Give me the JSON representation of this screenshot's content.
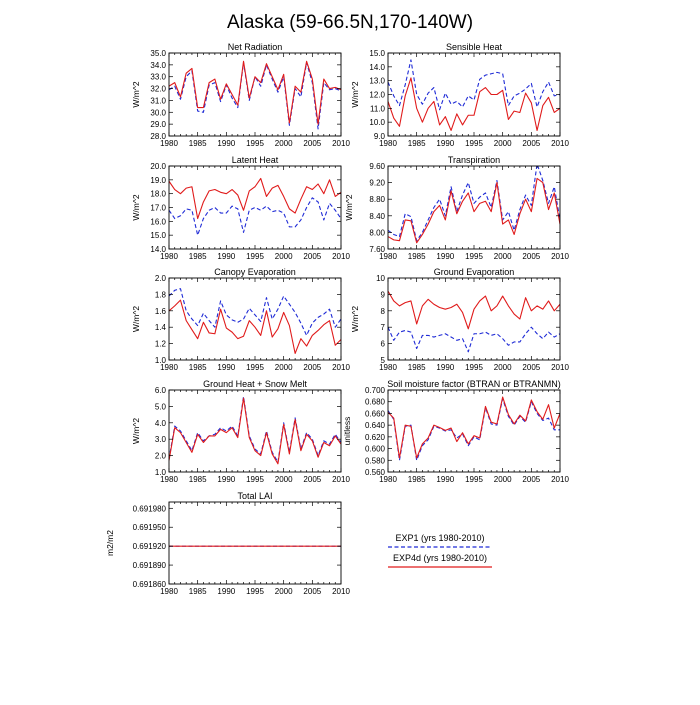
{
  "title": "Alaska (59-66.5N,170-140W)",
  "colors": {
    "exp1": "#1f2bd6",
    "exp4d": "#e01b1b"
  },
  "legend": {
    "entries": [
      {
        "label": "EXP1 (yrs 1980-2010)",
        "color": "#1f2bd6",
        "style": "dashed"
      },
      {
        "label": "EXP4d (yrs 1980-2010)",
        "color": "#e01b1b",
        "style": "solid"
      }
    ]
  },
  "chart_data": [
    {
      "type": "line",
      "title": "Net Radiation",
      "ylabel": "W/m^2",
      "xlim": [
        1980,
        2010
      ],
      "ylim": [
        28.0,
        35.0
      ],
      "xticks": [
        "1980",
        "1985",
        "1990",
        "1995",
        "2000",
        "2005",
        "2010"
      ],
      "yticks": [
        "28.0",
        "29.0",
        "30.0",
        "31.0",
        "32.0",
        "33.0",
        "34.0",
        "35.0"
      ],
      "x_start": 1980,
      "series": [
        {
          "values": [
            31.9,
            32.2,
            31.1,
            33.0,
            33.5,
            30.1,
            30.0,
            32.3,
            32.5,
            30.9,
            32.3,
            31.2,
            30.4,
            34.2,
            31.0,
            33.0,
            32.2,
            34.0,
            32.8,
            31.7,
            33.0,
            28.9,
            32.0,
            31.3,
            34.2,
            32.5,
            28.6,
            32.5,
            31.9,
            32.0,
            31.8
          ]
        },
        {
          "values": [
            32.2,
            32.5,
            31.3,
            33.3,
            33.7,
            30.4,
            30.4,
            32.5,
            32.8,
            31.1,
            32.4,
            31.5,
            30.6,
            34.3,
            31.2,
            33.0,
            32.5,
            34.1,
            33.0,
            31.9,
            33.2,
            29.1,
            32.2,
            31.7,
            34.3,
            32.8,
            29.0,
            32.8,
            32.0,
            32.1,
            31.9
          ]
        }
      ]
    },
    {
      "type": "line",
      "title": "Sensible Heat",
      "ylabel": "W/m^2",
      "xlim": [
        1980,
        2010
      ],
      "ylim": [
        9.0,
        15.0
      ],
      "xticks": [
        "1980",
        "1985",
        "1990",
        "1995",
        "2000",
        "2005",
        "2010"
      ],
      "yticks": [
        "9.0",
        "10.0",
        "11.0",
        "12.0",
        "13.0",
        "14.0",
        "15.0"
      ],
      "x_start": 1980,
      "series": [
        {
          "values": [
            12.9,
            11.9,
            11.2,
            12.7,
            14.5,
            12.0,
            11.3,
            12.1,
            12.5,
            10.9,
            12.1,
            11.3,
            11.5,
            11.1,
            11.9,
            11.6,
            13.1,
            13.4,
            13.5,
            13.6,
            13.5,
            11.2,
            11.9,
            12.1,
            12.4,
            12.8,
            11.1,
            12.2,
            12.9,
            11.9,
            12.0
          ]
        },
        {
          "values": [
            11.5,
            10.3,
            9.7,
            11.9,
            13.2,
            11.0,
            10.0,
            11.0,
            11.5,
            9.8,
            10.4,
            9.4,
            10.6,
            9.8,
            10.5,
            10.5,
            12.2,
            12.5,
            12.0,
            12.0,
            12.3,
            10.2,
            10.8,
            10.7,
            12.1,
            11.4,
            9.4,
            11.2,
            11.8,
            10.7,
            11.0
          ]
        }
      ]
    },
    {
      "type": "line",
      "title": "Latent Heat",
      "ylabel": "W/m^2",
      "xlim": [
        1980,
        2010
      ],
      "ylim": [
        14.0,
        20.0
      ],
      "xticks": [
        "1980",
        "1985",
        "1990",
        "1995",
        "2000",
        "2005",
        "2010"
      ],
      "yticks": [
        "14.0",
        "15.0",
        "16.0",
        "17.0",
        "18.0",
        "19.0",
        "20.0"
      ],
      "x_start": 1980,
      "series": [
        {
          "values": [
            16.8,
            16.2,
            16.4,
            16.9,
            16.8,
            15.0,
            16.2,
            16.8,
            17.0,
            16.6,
            16.6,
            17.1,
            16.9,
            15.2,
            16.8,
            17.0,
            16.8,
            17.1,
            16.7,
            16.8,
            16.6,
            15.6,
            15.6,
            16.1,
            17.0,
            17.7,
            17.4,
            16.1,
            17.3,
            16.8,
            16.2
          ]
        },
        {
          "values": [
            18.9,
            18.3,
            18.0,
            18.4,
            18.5,
            16.2,
            17.4,
            18.2,
            18.3,
            18.1,
            18.0,
            18.3,
            17.9,
            16.8,
            18.2,
            18.5,
            19.1,
            17.8,
            18.4,
            18.6,
            17.8,
            16.9,
            16.6,
            17.6,
            18.5,
            18.3,
            18.7,
            18.0,
            19.0,
            17.8,
            18.1
          ]
        }
      ]
    },
    {
      "type": "line",
      "title": "Transpiration",
      "ylabel": "W/m^2",
      "xlim": [
        1980,
        2010
      ],
      "ylim": [
        7.6,
        9.6
      ],
      "xticks": [
        "1980",
        "1985",
        "1990",
        "1995",
        "2000",
        "2005",
        "2010"
      ],
      "yticks": [
        "7.60",
        "8.00",
        "8.40",
        "8.80",
        "9.20",
        "9.60"
      ],
      "x_start": 1980,
      "series": [
        {
          "values": [
            8.05,
            7.95,
            7.9,
            8.45,
            8.38,
            7.8,
            8.0,
            8.3,
            8.6,
            8.8,
            8.4,
            9.1,
            8.5,
            8.9,
            9.2,
            8.7,
            8.85,
            8.95,
            8.6,
            9.25,
            8.3,
            8.5,
            8.05,
            8.55,
            8.9,
            8.65,
            9.65,
            9.25,
            8.7,
            9.1,
            8.3
          ]
        },
        {
          "values": [
            7.9,
            7.82,
            7.8,
            8.3,
            8.28,
            7.75,
            7.95,
            8.2,
            8.5,
            8.65,
            8.3,
            9.0,
            8.45,
            8.75,
            8.95,
            8.5,
            8.7,
            8.75,
            8.5,
            9.2,
            8.2,
            8.3,
            7.95,
            8.45,
            8.8,
            8.5,
            9.3,
            9.2,
            8.55,
            8.95,
            8.2
          ]
        }
      ]
    },
    {
      "type": "line",
      "title": "Canopy Evaporation",
      "ylabel": "W/m^2",
      "xlim": [
        1980,
        2010
      ],
      "ylim": [
        1.0,
        2.0
      ],
      "xticks": [
        "1980",
        "1985",
        "1990",
        "1995",
        "2000",
        "2005",
        "2010"
      ],
      "yticks": [
        "1.0",
        "1.2",
        "1.4",
        "1.6",
        "1.8",
        "2.0"
      ],
      "x_start": 1980,
      "series": [
        {
          "values": [
            1.78,
            1.85,
            1.87,
            1.6,
            1.5,
            1.42,
            1.57,
            1.48,
            1.4,
            1.72,
            1.55,
            1.49,
            1.46,
            1.5,
            1.63,
            1.55,
            1.47,
            1.76,
            1.5,
            1.62,
            1.78,
            1.68,
            1.58,
            1.45,
            1.3,
            1.45,
            1.52,
            1.56,
            1.62,
            1.4,
            1.5
          ]
        },
        {
          "values": [
            1.6,
            1.66,
            1.73,
            1.48,
            1.37,
            1.26,
            1.46,
            1.33,
            1.32,
            1.62,
            1.39,
            1.34,
            1.26,
            1.29,
            1.48,
            1.4,
            1.3,
            1.6,
            1.28,
            1.38,
            1.58,
            1.42,
            1.08,
            1.26,
            1.17,
            1.3,
            1.36,
            1.43,
            1.48,
            1.18,
            1.25
          ]
        }
      ]
    },
    {
      "type": "line",
      "title": "Ground Evaporation",
      "ylabel": "W/m^2",
      "xlim": [
        1980,
        2010
      ],
      "ylim": [
        5,
        10
      ],
      "xticks": [
        "1980",
        "1985",
        "1990",
        "1995",
        "2000",
        "2005",
        "2010"
      ],
      "yticks": [
        "5",
        "6",
        "7",
        "8",
        "9",
        "10"
      ],
      "x_start": 1980,
      "series": [
        {
          "values": [
            7.0,
            6.2,
            6.7,
            6.8,
            6.7,
            5.7,
            6.5,
            6.5,
            6.4,
            6.5,
            6.6,
            6.4,
            6.2,
            6.3,
            5.5,
            6.6,
            6.6,
            6.7,
            6.5,
            6.6,
            6.3,
            5.9,
            6.1,
            6.1,
            6.6,
            7.0,
            6.6,
            6.3,
            6.7,
            6.4,
            6.6
          ]
        },
        {
          "values": [
            9.2,
            8.6,
            8.3,
            8.5,
            8.6,
            7.2,
            8.3,
            8.7,
            8.4,
            8.2,
            8.1,
            8.2,
            8.4,
            7.9,
            6.9,
            8.1,
            8.6,
            8.9,
            8.0,
            8.3,
            8.9,
            8.3,
            7.8,
            7.5,
            8.8,
            8.0,
            8.3,
            8.1,
            8.6,
            8.0,
            8.4
          ]
        }
      ]
    },
    {
      "type": "line",
      "title": "Ground Heat + Snow Melt",
      "ylabel": "W/m^2",
      "xlim": [
        1980,
        2010
      ],
      "ylim": [
        1.0,
        6.0
      ],
      "xticks": [
        "1980",
        "1985",
        "1990",
        "1995",
        "2000",
        "2005",
        "2010"
      ],
      "yticks": [
        "1.0",
        "2.0",
        "3.0",
        "4.0",
        "5.0",
        "6.0"
      ],
      "x_start": 1980,
      "series": [
        {
          "values": [
            1.8,
            3.8,
            3.5,
            2.9,
            2.3,
            3.4,
            2.9,
            3.2,
            3.3,
            3.7,
            3.5,
            3.8,
            3.2,
            5.6,
            3.2,
            2.4,
            2.1,
            3.5,
            2.2,
            1.6,
            4.0,
            2.2,
            4.3,
            2.4,
            3.4,
            3.0,
            2.0,
            2.9,
            2.7,
            3.3,
            2.8
          ]
        },
        {
          "values": [
            1.7,
            3.7,
            3.4,
            2.8,
            2.2,
            3.3,
            2.8,
            3.2,
            3.2,
            3.6,
            3.4,
            3.7,
            3.1,
            5.5,
            3.1,
            2.3,
            2.0,
            3.4,
            2.1,
            1.5,
            3.9,
            2.1,
            4.2,
            2.3,
            3.3,
            2.9,
            1.9,
            2.8,
            2.6,
            3.2,
            2.7
          ]
        }
      ]
    },
    {
      "type": "line",
      "title": "Soil moisture factor (BTRAN or BTRANMN)",
      "ylabel": "unitless",
      "xlim": [
        1980,
        2010
      ],
      "ylim": [
        0.56,
        0.7
      ],
      "xticks": [
        "1980",
        "1985",
        "1990",
        "1995",
        "2000",
        "2005",
        "2010"
      ],
      "yticks": [
        "0.560",
        "0.580",
        "0.600",
        "0.620",
        "0.640",
        "0.660",
        "0.680",
        "0.700"
      ],
      "x_start": 1980,
      "series": [
        {
          "values": [
            0.665,
            0.65,
            0.58,
            0.638,
            0.64,
            0.58,
            0.605,
            0.615,
            0.638,
            0.635,
            0.63,
            0.632,
            0.618,
            0.625,
            0.605,
            0.62,
            0.615,
            0.67,
            0.642,
            0.64,
            0.685,
            0.655,
            0.64,
            0.655,
            0.645,
            0.68,
            0.66,
            0.648,
            0.652,
            0.632,
            0.632
          ]
        },
        {
          "values": [
            0.662,
            0.652,
            0.584,
            0.64,
            0.638,
            0.584,
            0.608,
            0.618,
            0.64,
            0.636,
            0.631,
            0.635,
            0.612,
            0.627,
            0.608,
            0.622,
            0.618,
            0.672,
            0.645,
            0.642,
            0.688,
            0.658,
            0.642,
            0.657,
            0.647,
            0.683,
            0.663,
            0.65,
            0.675,
            0.635,
            0.66
          ]
        }
      ]
    },
    {
      "type": "line",
      "title": "Total LAI",
      "ylabel": "m2/m2",
      "xlim": [
        1980,
        2010
      ],
      "ylim": [
        0.69186,
        0.69199
      ],
      "xticks": [
        "1980",
        "1985",
        "1990",
        "1995",
        "2000",
        "2005",
        "2010"
      ],
      "yticks": [
        "0.691860",
        "0.691890",
        "0.691920",
        "0.691950",
        "0.691980"
      ],
      "x_start": 1980,
      "series": [
        {
          "values": [
            0.69192,
            0.69192,
            0.69192,
            0.69192,
            0.69192,
            0.69192,
            0.69192,
            0.69192,
            0.69192,
            0.69192,
            0.69192,
            0.69192,
            0.69192,
            0.69192,
            0.69192,
            0.69192,
            0.69192,
            0.69192,
            0.69192,
            0.69192,
            0.69192,
            0.69192,
            0.69192,
            0.69192,
            0.69192,
            0.69192,
            0.69192,
            0.69192,
            0.69192,
            0.69192,
            0.69192
          ]
        },
        {
          "values": [
            0.69192,
            0.69192,
            0.69192,
            0.69192,
            0.69192,
            0.69192,
            0.69192,
            0.69192,
            0.69192,
            0.69192,
            0.69192,
            0.69192,
            0.69192,
            0.69192,
            0.69192,
            0.69192,
            0.69192,
            0.69192,
            0.69192,
            0.69192,
            0.69192,
            0.69192,
            0.69192,
            0.69192,
            0.69192,
            0.69192,
            0.69192,
            0.69192,
            0.69192,
            0.69192,
            0.69192
          ]
        }
      ]
    }
  ]
}
